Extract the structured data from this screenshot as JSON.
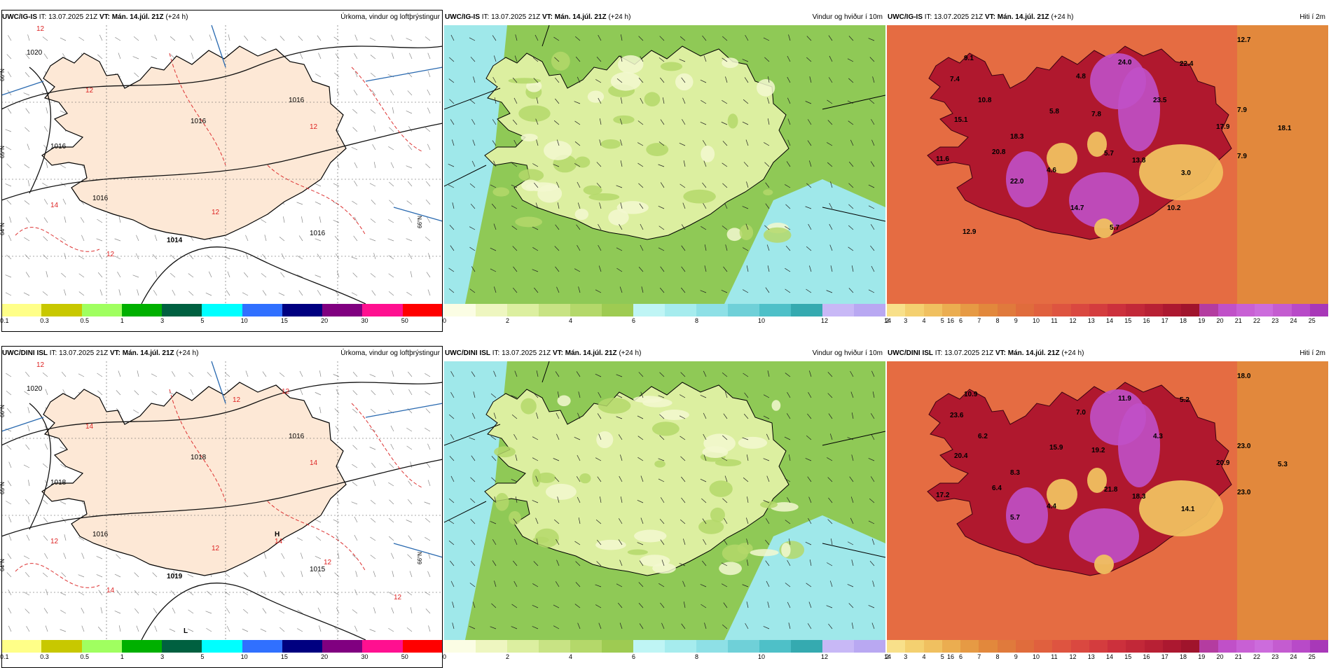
{
  "rows": [
    {
      "model": "UWC/IG-IS",
      "issue": "IT: 13.07.2025 21Z",
      "valid": "VT: Mán. 14.júl. 21Z",
      "lead": "(+24 h)",
      "precip": {
        "title": "Úrkoma, vindur og loftþrýstingur",
        "pressure_labels": [
          "1020",
          "1016",
          "1016",
          "1016",
          "1016",
          "1014",
          "1016"
        ],
        "precip_labels": [
          "12",
          "12",
          "12",
          "14",
          "12",
          "12"
        ],
        "lat_labels": [
          "66°N",
          "65°N",
          "64°N",
          "66°N"
        ]
      },
      "wind": {
        "title": "Vindur og hviður í 10m"
      },
      "temp": {
        "title": "Hiti í 2m",
        "labels": [
          "12.7",
          "9.1",
          "24.0",
          "22.4",
          "7.4",
          "4.8",
          "10.8",
          "23.5",
          "7.9",
          "5.8",
          "7.8",
          "15.1",
          "17.9",
          "18.1",
          "18.3",
          "20.8",
          "5.7",
          "7.9",
          "11.6",
          "13.8",
          "4.6",
          "3.0",
          "22.0",
          "10.2",
          "14.7",
          "5.7",
          "12.9"
        ]
      }
    },
    {
      "model": "UWC/DINI ISL",
      "issue": "IT: 13.07.2025 21Z",
      "valid": "VT: Mán. 14.júl. 21Z",
      "lead": "(+24 h)",
      "precip": {
        "title": "Úrkoma, vindur og loftþrýstingur",
        "pressure_labels": [
          "1020",
          "1018",
          "1018",
          "1016",
          "1016",
          "1019",
          "1015"
        ],
        "highlow": [
          "H",
          "L"
        ],
        "precip_labels": [
          "12",
          "14",
          "14",
          "12",
          "12",
          "14",
          "12",
          "12",
          "14",
          "12",
          "12"
        ],
        "lat_labels": [
          "66°N",
          "65°N",
          "64°N",
          "66°N"
        ]
      },
      "wind": {
        "title": "Vindur og hviður í 10m"
      },
      "temp": {
        "title": "Hiti í 2m",
        "labels": [
          "18.0",
          "10.9",
          "11.9",
          "5.2",
          "23.6",
          "7.0",
          "6.2",
          "4.3",
          "23.0",
          "15.9",
          "19.2",
          "20.4",
          "20.9",
          "5.3",
          "8.3",
          "6.4",
          "21.8",
          "23.0",
          "17.2",
          "18.3",
          "4.4",
          "14.1",
          "5.7"
        ]
      }
    }
  ],
  "colorbars": {
    "precip": {
      "ticks": [
        "0.1",
        "0.3",
        "0.5",
        "1",
        "3",
        "5",
        "10",
        "15",
        "20",
        "30",
        "50"
      ],
      "colors": [
        "#ffff88",
        "#c8c800",
        "#a0ff60",
        "#00b000",
        "#006040",
        "#00ffff",
        "#3070ff",
        "#000080",
        "#800080",
        "#ff1090",
        "#ff0000"
      ]
    },
    "wind": {
      "ticks": [
        "0",
        "2",
        "4",
        "6",
        "8",
        "10",
        "12",
        "14",
        "16"
      ],
      "colors": [
        "#fbfde4",
        "#eef6c0",
        "#dcefa0",
        "#c8e384",
        "#b4d86a",
        "#9ecb52",
        "#bff5f5",
        "#a6ecee",
        "#8ee0e6",
        "#6fd0d8",
        "#4ec0c8",
        "#35aab0",
        "#c8b8f6",
        "#b9a8f2"
      ]
    },
    "temp": {
      "ticks": [
        "2",
        "3",
        "4",
        "5",
        "6",
        "7",
        "8",
        "9",
        "10",
        "11",
        "12",
        "13",
        "14",
        "15",
        "16",
        "17",
        "18",
        "19",
        "20",
        "21",
        "22",
        "23",
        "24",
        "25"
      ],
      "colors": [
        "#f8e08a",
        "#f4d070",
        "#f0c060",
        "#ebad50",
        "#e69a44",
        "#e2883c",
        "#e07a3c",
        "#e06c3c",
        "#e0603e",
        "#de5440",
        "#da4840",
        "#d43c3e",
        "#cc303c",
        "#c22838",
        "#b82034",
        "#ac1830",
        "#a0142c",
        "#b43ca0",
        "#c050c8",
        "#c860d4",
        "#cc6cdc",
        "#c45cd0",
        "#b84ac8",
        "#a838b8"
      ]
    }
  }
}
